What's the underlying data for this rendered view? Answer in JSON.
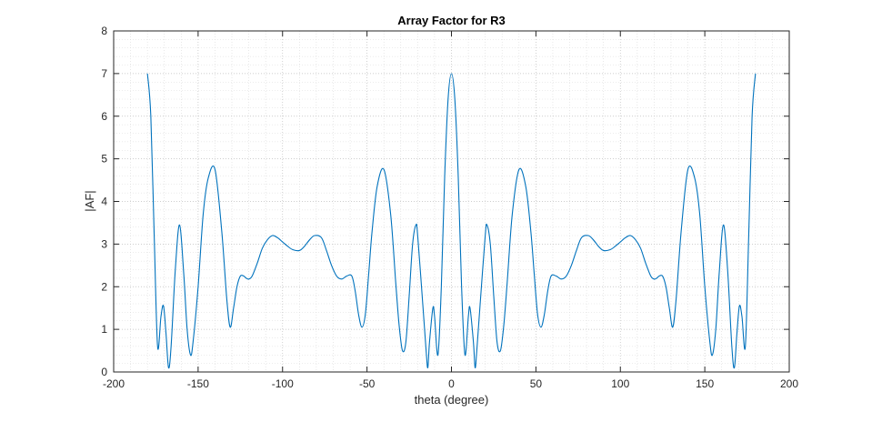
{
  "chart_data": {
    "type": "line",
    "title": "Array Factor for R3",
    "xlabel": "theta (degree)",
    "ylabel": "|AF|",
    "xlim": [
      -200,
      200
    ],
    "ylim": [
      0,
      8
    ],
    "xticks": [
      -200,
      -150,
      -100,
      -50,
      0,
      50,
      100,
      150,
      200
    ],
    "yticks": [
      0,
      1,
      2,
      3,
      4,
      5,
      6,
      7,
      8
    ],
    "xtick_labels": [
      "-200",
      "-150",
      "-100",
      "-50",
      "0",
      "50",
      "100",
      "150",
      "200"
    ],
    "ytick_labels": [
      "0",
      "1",
      "2",
      "3",
      "4",
      "5",
      "6",
      "7",
      "8"
    ],
    "grid": true,
    "minor_grid": true,
    "line_color": "#0072BD",
    "series": [
      {
        "x": [
          -180,
          -178,
          -176,
          -174,
          -172,
          -170.5,
          -169,
          -167.5,
          -166,
          -163.5,
          -161,
          -158.5,
          -156.5,
          -154.5,
          -153,
          -150,
          -147,
          -144,
          -140,
          -136,
          -133,
          -131,
          -129,
          -127,
          -125,
          -123,
          -121.5,
          -120,
          -118,
          -115,
          -112,
          -109,
          -106,
          -103,
          -100,
          -97,
          -94,
          -90,
          -87,
          -84,
          -81,
          -77,
          -74,
          -71,
          -68,
          -65,
          -62,
          -59,
          -57,
          -55,
          -53,
          -51,
          -49,
          -47,
          -44,
          -40,
          -36,
          -33,
          -31,
          -29,
          -27,
          -25,
          -23,
          -21,
          -20,
          -17,
          -15,
          -14,
          -13,
          -11,
          -10,
          -8,
          -6,
          -4,
          -2,
          0,
          2,
          4,
          6,
          8,
          10,
          11,
          13,
          14,
          15,
          17,
          20,
          21,
          23,
          25,
          27,
          29,
          31,
          33,
          36,
          40,
          44,
          47,
          49,
          51,
          53,
          55,
          57,
          59,
          62,
          65,
          68,
          71,
          74,
          77,
          81,
          84,
          87,
          90,
          94,
          97,
          100,
          103,
          106,
          109,
          112,
          115,
          118,
          120,
          121.5,
          123,
          125,
          127,
          129,
          131,
          133,
          136,
          140,
          144,
          147,
          150,
          153,
          154.5,
          156.5,
          158.5,
          161,
          163.5,
          166,
          167.5,
          169,
          170.5,
          172,
          174,
          176,
          178,
          180
        ],
        "y": [
          7.0,
          6.0,
          3.2,
          0.6,
          1.3,
          1.55,
          0.9,
          0.1,
          0.6,
          2.4,
          3.45,
          2.3,
          1.0,
          0.4,
          0.7,
          2.0,
          3.7,
          4.55,
          4.75,
          3.3,
          1.7,
          1.05,
          1.5,
          2.0,
          2.25,
          2.25,
          2.2,
          2.18,
          2.25,
          2.55,
          2.9,
          3.1,
          3.2,
          3.15,
          3.05,
          2.95,
          2.87,
          2.85,
          2.95,
          3.1,
          3.2,
          3.15,
          2.85,
          2.5,
          2.25,
          2.18,
          2.25,
          2.25,
          1.9,
          1.35,
          1.05,
          1.35,
          2.3,
          3.3,
          4.35,
          4.75,
          3.7,
          2.1,
          1.1,
          0.5,
          0.7,
          1.8,
          3.0,
          3.45,
          3.2,
          1.6,
          0.5,
          0.1,
          0.7,
          1.5,
          1.3,
          0.4,
          2.0,
          4.6,
          6.4,
          7.0,
          6.4,
          4.6,
          2.0,
          0.4,
          1.3,
          1.5,
          0.7,
          0.1,
          0.5,
          1.6,
          3.2,
          3.45,
          3.0,
          1.8,
          0.7,
          0.5,
          1.1,
          2.1,
          3.7,
          4.75,
          4.35,
          3.3,
          2.3,
          1.35,
          1.05,
          1.35,
          1.9,
          2.25,
          2.25,
          2.18,
          2.25,
          2.5,
          2.85,
          3.15,
          3.2,
          3.1,
          2.95,
          2.85,
          2.87,
          2.95,
          3.05,
          3.15,
          3.2,
          3.1,
          2.9,
          2.55,
          2.25,
          2.18,
          2.2,
          2.25,
          2.25,
          2.0,
          1.5,
          1.05,
          1.7,
          3.3,
          4.75,
          4.55,
          3.7,
          2.0,
          0.7,
          0.4,
          1.0,
          2.3,
          3.45,
          2.4,
          0.6,
          0.1,
          0.9,
          1.55,
          1.3,
          0.6,
          3.2,
          6.0,
          7.0
        ]
      }
    ]
  }
}
